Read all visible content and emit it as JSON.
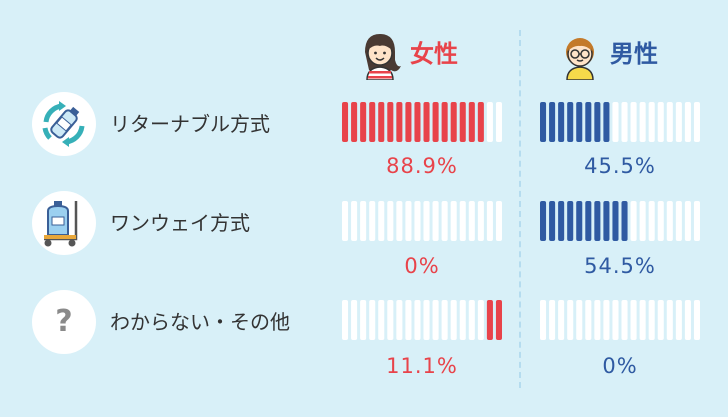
{
  "colors": {
    "female": "#e8434a",
    "male": "#2f5aa2",
    "empty_bar": "#ffffff",
    "background": "#d8f0f8"
  },
  "header": {
    "female_label": "女性",
    "male_label": "男性",
    "female_icon": "girl-avatar-icon",
    "male_icon": "boy-with-glasses-avatar-icon"
  },
  "rows": [
    {
      "label": "リターナブル方式",
      "icon": "recycle-bottle-icon"
    },
    {
      "label": "ワンウェイ方式",
      "icon": "water-jug-cart-icon"
    },
    {
      "label": "わからない・その他",
      "icon": "question-mark-icon",
      "icon_text": "?"
    }
  ],
  "chart_data": {
    "type": "bar",
    "categories": [
      "リターナブル方式",
      "ワンウェイ方式",
      "わからない・その他"
    ],
    "series": [
      {
        "name": "女性",
        "values": [
          88.9,
          0,
          11.1
        ],
        "labels": [
          "88.9%",
          "0%",
          "11.1%"
        ]
      },
      {
        "name": "男性",
        "values": [
          45.5,
          54.5,
          0
        ],
        "labels": [
          "45.5%",
          "54.5%",
          "0%"
        ]
      }
    ],
    "segments_per_bar": 18,
    "female_fill_from": [
      "left",
      "left",
      "right"
    ],
    "ylim": [
      0,
      100
    ]
  }
}
